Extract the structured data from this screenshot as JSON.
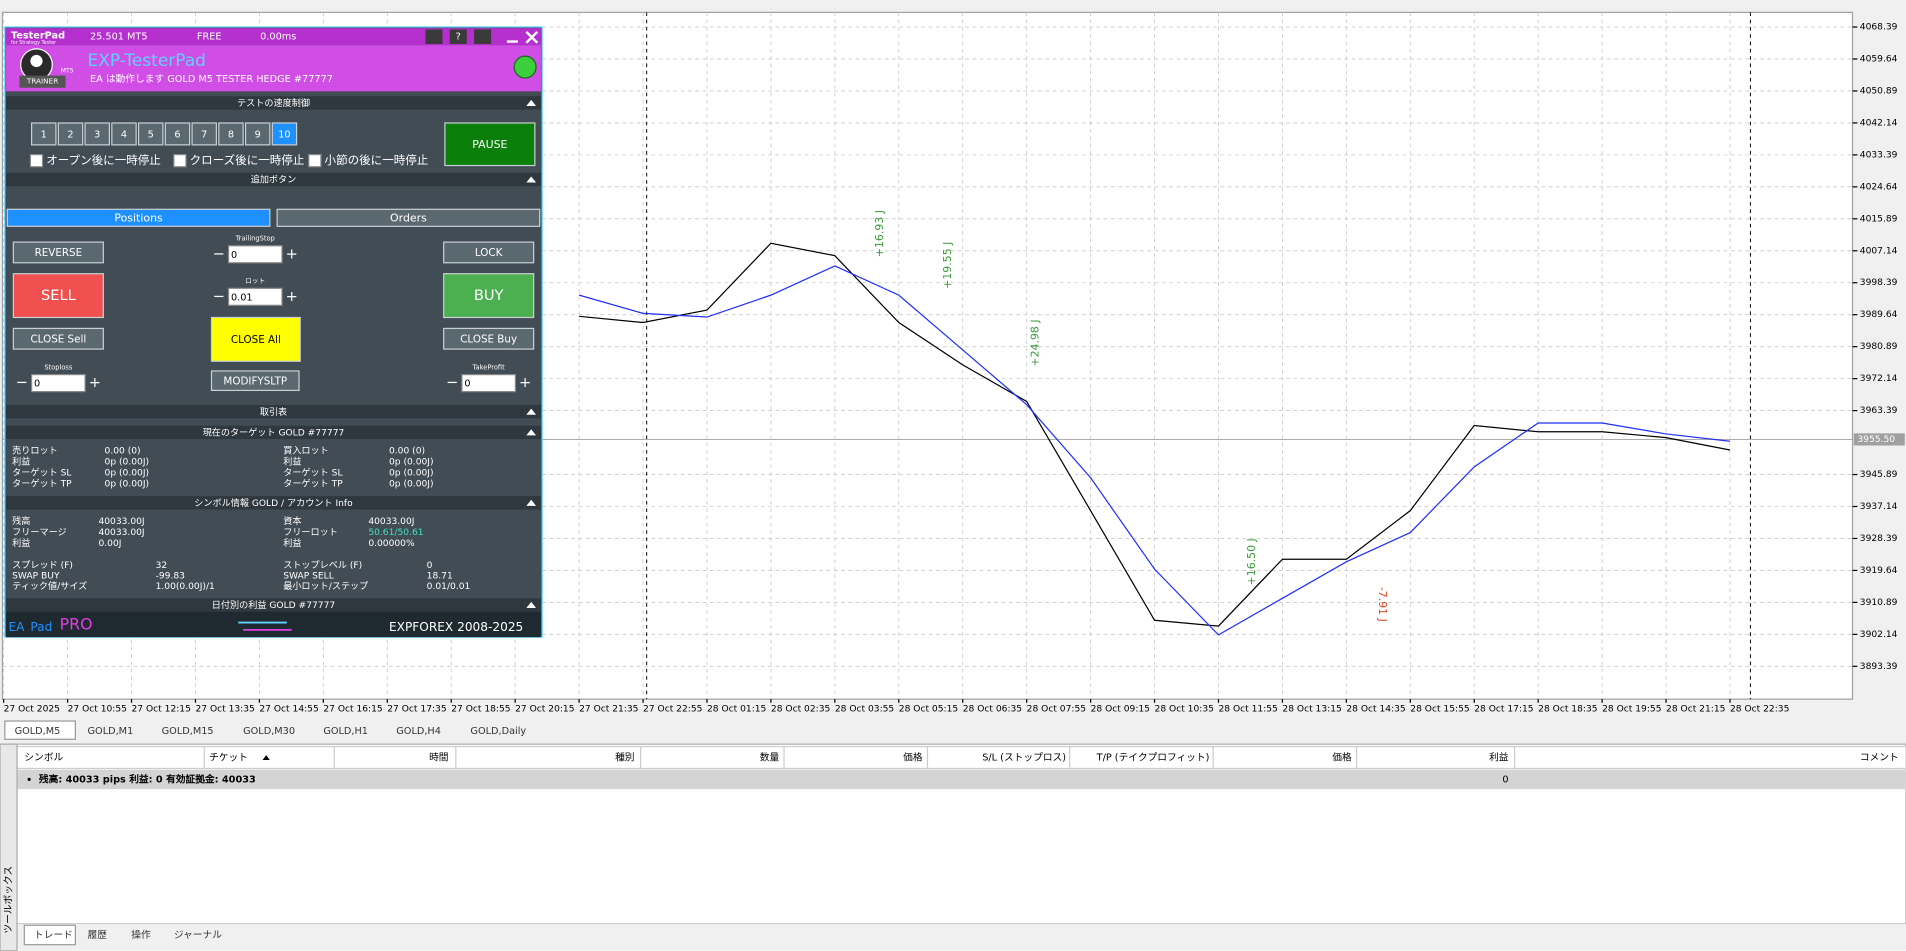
{
  "panel": {
    "brand": "TesterPad",
    "brand_sub": "for Strategy Tester",
    "version": "25.501 MT5",
    "license": "FREE",
    "latency": "0.00ms",
    "help": "?",
    "title": "EXP-TesterPad",
    "status": "EA は動作します GOLD M5 TESTER HEDGE  #77777",
    "logo_label": "TRAINER",
    "logo_badge": "MT5",
    "speed": {
      "header": "テストの速度制御",
      "buttons": [
        "1",
        "2",
        "3",
        "4",
        "5",
        "6",
        "7",
        "8",
        "9",
        "10"
      ],
      "pause": "PAUSE",
      "checks": [
        "オープン後に一時停止",
        "クローズ後に一時停止",
        "小節の後に一時停止"
      ]
    },
    "extra_header": "追加ボタン",
    "tabs": [
      "Positions",
      "Orders"
    ],
    "controls": {
      "reverse": "REVERSE",
      "trailing_label": "TrailingStop",
      "trailing_value": "0",
      "lock": "LOCK",
      "sell": "SELL",
      "lot_label": "ロット",
      "lot_value": "0.01",
      "buy": "BUY",
      "close_sell": "CLOSE Sell",
      "close_all": "CLOSE All",
      "close_buy": "CLOSE Buy",
      "sl_label": "Stoploss",
      "sl_value": "0",
      "modify": "MODIFYSLTP",
      "tp_label": "TakeProfit",
      "tp_value": "0",
      "minus": "−",
      "plus": "+"
    },
    "trade_table_header": "取引表",
    "target": {
      "header": "現在のターゲット GOLD  #77777",
      "rows": [
        [
          "売りロット",
          "0.00 (0)",
          "買入ロット",
          "0.00 (0)"
        ],
        [
          "利益",
          "0p (0.00J)",
          "利益",
          "0p (0.00J)"
        ],
        [
          "ターゲット SL",
          "0p (0.00J)",
          "ターゲット SL",
          "0p (0.00J)"
        ],
        [
          "ターゲット TP",
          "0p (0.00J)",
          "ターゲット TP",
          "0p (0.00J)"
        ]
      ]
    },
    "info": {
      "header": "シンボル情報 GOLD / アカウント Info",
      "rows": [
        [
          "残高",
          "40033.00J",
          "資本",
          "40033.00J"
        ],
        [
          "フリーマージ",
          "40033.00J",
          "フリーロット",
          "50.61/50.61"
        ],
        [
          "利益",
          "0.00J",
          "利益",
          "0.00000%"
        ],
        [
          "スプレッド (F)",
          "32",
          "ストップレベル (F)",
          "0"
        ],
        [
          "SWAP BUY",
          "-99.83",
          "SWAP SELL",
          "18.71"
        ],
        [
          "ティック値/サイズ",
          "1.00(0.00J)/1",
          "最小ロット/ステップ",
          "0.01/0.01"
        ]
      ]
    },
    "daily_header": "日付別の利益 GOLD  #77777",
    "footer": {
      "ea": "EA",
      "pad": "Pad",
      "pro": "PRO",
      "copyright": "EXPFOREX 2008-2025"
    }
  },
  "chart_data": {
    "type": "line",
    "x": [
      "27 Oct 2025",
      "27 Oct 10:55",
      "27 Oct 12:15",
      "27 Oct 13:35",
      "27 Oct 14:55",
      "27 Oct 16:15",
      "27 Oct 17:35",
      "27 Oct 18:55",
      "27 Oct 20:15",
      "27 Oct 21:35",
      "27 Oct 22:55",
      "28 Oct 01:15",
      "28 Oct 02:35",
      "28 Oct 03:55",
      "28 Oct 05:15",
      "28 Oct 06:35",
      "28 Oct 07:55",
      "28 Oct 09:15",
      "28 Oct 10:35",
      "28 Oct 11:55",
      "28 Oct 13:15",
      "28 Oct 14:35",
      "28 Oct 15:55",
      "28 Oct 17:15",
      "28 Oct 18:35",
      "28 Oct 19:55",
      "28 Oct 21:15",
      "28 Oct 22:35"
    ],
    "series": [
      {
        "color": "#000000",
        "values": [
          null,
          null,
          null,
          null,
          null,
          null,
          null,
          null,
          null,
          3989.2,
          3987.5,
          3990.9,
          4009.2,
          4005.8,
          3987.5,
          3975.9,
          3965.9,
          3936.0,
          3906.0,
          3904.4,
          3922.7,
          3922.7,
          3936.0,
          3959.3,
          3957.6,
          3957.6,
          3956.0,
          3952.6
        ]
      },
      {
        "color": "#1f2fff",
        "values": [
          null,
          null,
          null,
          null,
          null,
          null,
          null,
          null,
          null,
          3995,
          3990,
          3989,
          3995,
          4003,
          3995,
          3980,
          3965,
          3945,
          3920,
          3902,
          3912,
          3922,
          3930,
          3948,
          3960,
          3960,
          3957,
          3955
        ]
      }
    ],
    "ylim": [
      3884.4,
      4072.4
    ],
    "yticks": [
      4068.39,
      4059.64,
      4050.89,
      4042.14,
      4033.39,
      4024.64,
      4015.89,
      4007.14,
      3998.39,
      3989.64,
      3980.89,
      3972.14,
      3963.39,
      3945.89,
      3937.14,
      3928.39,
      3919.64,
      3910.89,
      3902.14,
      3893.39
    ],
    "current_price": {
      "value": 3955.5,
      "label": "3955.50"
    },
    "annotations": [
      "+16.93 J",
      "+19.55 J",
      "+24.98 J",
      "+16.50 J",
      "-7.91 J"
    ],
    "grid": true
  },
  "chart_tabs": [
    "GOLD,M5",
    "GOLD,M1",
    "GOLD,M15",
    "GOLD,M30",
    "GOLD,H1",
    "GOLD,H4",
    "GOLD,Daily"
  ],
  "table": {
    "columns": [
      "シンボル",
      "チケット",
      "時間",
      "種別",
      "数量",
      "価格",
      "S/L (ストップロス)",
      "T/P (テイクプロフィット)",
      "価格",
      "利益",
      "コメント"
    ],
    "rows": [
      [
        "残高: 40033 pips  利益: 0  有効証拠金: 40033",
        "0"
      ]
    ]
  },
  "bottom_tabs": [
    "トレード",
    "履歴",
    "操作",
    "ジャーナル"
  ],
  "toolbox": "ツールボックス"
}
